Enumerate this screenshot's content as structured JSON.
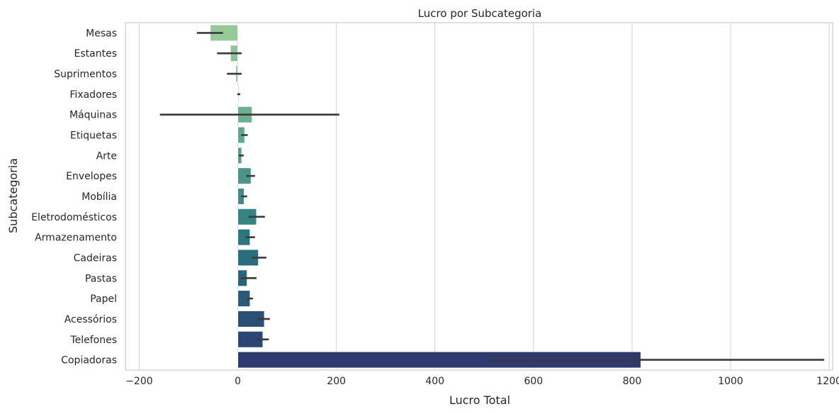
{
  "chart_data": {
    "type": "bar",
    "orientation": "horizontal",
    "title": "Lucro por Subcategoria",
    "xlabel": "Lucro Total",
    "ylabel": "Subcategoria",
    "xlim": [
      -228,
      1207
    ],
    "xticks": [
      -200,
      0,
      200,
      400,
      600,
      800,
      1000,
      1200
    ],
    "xtick_labels": [
      "−200",
      "0",
      "200",
      "400",
      "600",
      "800",
      "1000",
      "1200"
    ],
    "grid": "vertical",
    "categories": [
      "Mesas",
      "Estantes",
      "Suprimentos",
      "Fixadores",
      "Máquinas",
      "Etiquetas",
      "Arte",
      "Envelopes",
      "Mobília",
      "Eletrodomésticos",
      "Armazenamento",
      "Cadeiras",
      "Pastas",
      "Papel",
      "Acessórios",
      "Telefones",
      "Copiadoras"
    ],
    "values": [
      -56,
      -15,
      -4,
      2,
      29,
      14,
      8,
      27,
      13,
      38,
      25,
      42,
      19,
      25,
      54,
      51,
      818
    ],
    "error_bars": [
      [
        -83,
        -30
      ],
      [
        -42,
        8
      ],
      [
        -22,
        8
      ],
      [
        -1,
        5
      ],
      [
        -158,
        206
      ],
      [
        7,
        20
      ],
      [
        2,
        12
      ],
      [
        17,
        35
      ],
      [
        7,
        19
      ],
      [
        22,
        55
      ],
      [
        16,
        35
      ],
      [
        28,
        58
      ],
      [
        6,
        38
      ],
      [
        19,
        31
      ],
      [
        40,
        65
      ],
      [
        39,
        63
      ],
      [
        510,
        1190
      ]
    ],
    "colors": [
      "#96c999",
      "#8cc496",
      "#81bd95",
      "#77b794",
      "#6bb091",
      "#5fa78e",
      "#549e8b",
      "#4a9588",
      "#408c86",
      "#358383",
      "#2d7880",
      "#296e7d",
      "#28647b",
      "#295a79",
      "#2b4f75",
      "#2d4572",
      "#2e3a6e"
    ],
    "error_color": "#3a3a3a",
    "grid_color": "#d6d6d6",
    "spine_color": "#cccccc"
  }
}
